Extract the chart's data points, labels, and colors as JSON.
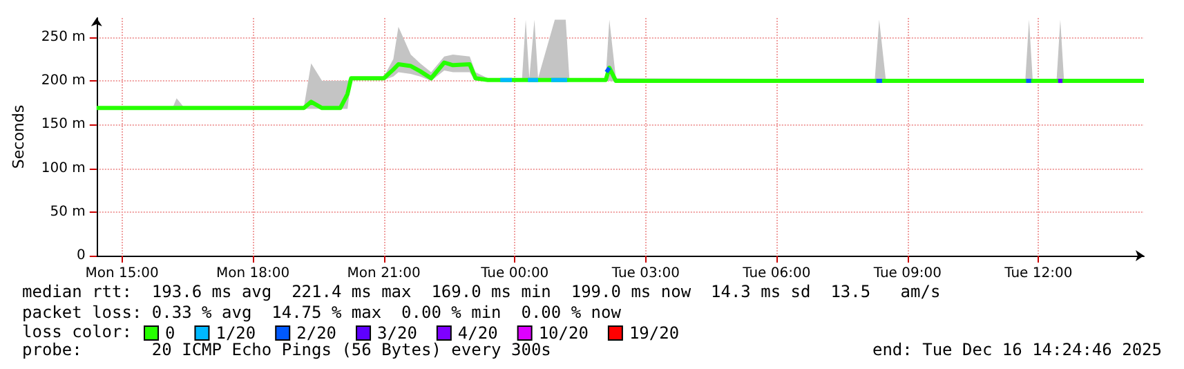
{
  "chart_data": {
    "type": "line",
    "ylabel": "Seconds",
    "legend_title": "loss color:",
    "legend": "bottom",
    "grid": true,
    "marker": "none",
    "line_style": "solid",
    "xlim": [
      "2025-12-15T14:25",
      "2025-12-16T14:25"
    ],
    "xticks": [
      {
        "value": "2025-12-15T15:00",
        "label": "Mon 15:00"
      },
      {
        "value": "2025-12-15T18:00",
        "label": "Mon 18:00"
      },
      {
        "value": "2025-12-15T21:00",
        "label": "Mon 21:00"
      },
      {
        "value": "2025-12-16T00:00",
        "label": "Tue 00:00"
      },
      {
        "value": "2025-12-16T03:00",
        "label": "Tue 03:00"
      },
      {
        "value": "2025-12-16T06:00",
        "label": "Tue 06:00"
      },
      {
        "value": "2025-12-16T09:00",
        "label": "Tue 09:00"
      },
      {
        "value": "2025-12-16T12:00",
        "label": "Tue 12:00"
      }
    ],
    "ylim": [
      0,
      272
    ],
    "yticks": [
      0,
      {
        "value": 50,
        "label": "50 m"
      },
      {
        "value": 100,
        "label": "100 m"
      },
      {
        "value": 150,
        "label": "150 m"
      },
      {
        "value": 200,
        "label": "200 m"
      },
      {
        "value": 250,
        "label": "250 m"
      }
    ],
    "x": [
      "2025-12-15T14:25",
      "2025-12-15T16:10",
      "2025-12-15T16:15",
      "2025-12-15T16:25",
      "2025-12-15T19:10",
      "2025-12-15T19:20",
      "2025-12-15T19:35",
      "2025-12-15T20:00",
      "2025-12-15T20:10",
      "2025-12-15T20:15",
      "2025-12-15T21:00",
      "2025-12-15T21:13",
      "2025-12-15T21:20",
      "2025-12-15T21:37",
      "2025-12-15T21:50",
      "2025-12-15T22:05",
      "2025-12-15T22:23",
      "2025-12-15T22:35",
      "2025-12-15T22:58",
      "2025-12-15T23:06",
      "2025-12-15T23:23",
      "2025-12-16T00:10",
      "2025-12-16T00:15",
      "2025-12-16T00:20",
      "2025-12-16T00:27",
      "2025-12-16T00:32",
      "2025-12-16T00:55",
      "2025-12-16T01:10",
      "2025-12-16T01:15",
      "2025-12-16T02:05",
      "2025-12-16T02:10",
      "2025-12-16T02:19",
      "2025-12-16T08:15",
      "2025-12-16T08:21",
      "2025-12-16T08:30",
      "2025-12-16T11:42",
      "2025-12-16T11:47",
      "2025-12-16T11:52",
      "2025-12-16T12:25",
      "2025-12-16T12:30",
      "2025-12-16T12:35",
      "2025-12-16T14:25"
    ],
    "series": [
      {
        "name": "0",
        "color": "#26ff00",
        "values": [
          169,
          169,
          169,
          169,
          169,
          176,
          169,
          169,
          185,
          203,
          203,
          213,
          219,
          217,
          211,
          203,
          221,
          218,
          219,
          203,
          201,
          201,
          201,
          201,
          201,
          201,
          201,
          201,
          201,
          201,
          215,
          200,
          200,
          200,
          200,
          200,
          200,
          200,
          200,
          200,
          200,
          200
        ],
        "lower": [
          168,
          168,
          168,
          168,
          168,
          168,
          168,
          168,
          168,
          201,
          201,
          205,
          210,
          208,
          205,
          200,
          212,
          210,
          210,
          200,
          200,
          200,
          200,
          200,
          200,
          200,
          200,
          200,
          200,
          200,
          200,
          199,
          199,
          199,
          199,
          199,
          199,
          199,
          199,
          199,
          199,
          199
        ],
        "upper": [
          170,
          170,
          180,
          170,
          170,
          220,
          200,
          200,
          200,
          205,
          205,
          225,
          262,
          230,
          220,
          210,
          228,
          230,
          228,
          210,
          203,
          203,
          270,
          203,
          270,
          203,
          270,
          270,
          203,
          203,
          270,
          203,
          202,
          270,
          202,
          202,
          270,
          202,
          202,
          270,
          202,
          201
        ]
      },
      {
        "name": "1/20",
        "color": "#00b8ff",
        "x": [
          "2025-12-15T23:40",
          "2025-12-15T23:56",
          "2025-12-16T00:10",
          "2025-12-16T00:18",
          "2025-12-16T00:32",
          "2025-12-16T00:40",
          "2025-12-16T00:50",
          "2025-12-16T01:12"
        ],
        "values": [
          201,
          201,
          null,
          201,
          201,
          null,
          201,
          201
        ]
      },
      {
        "name": "2/20",
        "color": "#0059ff",
        "x": [
          "2025-12-16T02:06",
          "2025-12-16T02:10",
          "2025-12-16T05:00",
          "2025-12-16T08:17",
          "2025-12-16T08:25",
          "2025-12-16T10:00",
          "2025-12-16T11:43",
          "2025-12-16T11:50"
        ],
        "values": [
          210,
          215,
          null,
          200,
          200,
          null,
          200,
          200
        ]
      },
      {
        "name": "3/20",
        "color": "#5e00ff",
        "x": [
          "2025-12-16T12:27",
          "2025-12-16T12:33"
        ],
        "values": [
          200,
          200
        ]
      },
      {
        "name": "4/20",
        "color": "#7e00ff",
        "values": [
          null,
          null,
          null,
          null,
          null,
          null,
          null,
          null,
          null,
          null,
          null,
          null,
          null,
          null,
          null,
          null,
          null,
          null,
          null,
          null,
          null,
          null,
          null,
          null,
          null,
          null,
          null,
          null,
          null,
          null,
          null,
          null,
          null,
          null,
          null,
          null,
          null,
          null,
          null,
          null,
          null,
          null
        ]
      },
      {
        "name": "10/20",
        "color": "#dd00ff",
        "values": [
          null,
          null,
          null,
          null,
          null,
          null,
          null,
          null,
          null,
          null,
          null,
          null,
          null,
          null,
          null,
          null,
          null,
          null,
          null,
          null,
          null,
          null,
          null,
          null,
          null,
          null,
          null,
          null,
          null,
          null,
          null,
          null,
          null,
          null,
          null,
          null,
          null,
          null,
          null,
          null,
          null,
          null
        ]
      },
      {
        "name": "19/20",
        "color": "#ff0000",
        "values": [
          null,
          null,
          null,
          null,
          null,
          null,
          null,
          null,
          null,
          null,
          null,
          null,
          null,
          null,
          null,
          null,
          null,
          null,
          null,
          null,
          null,
          null,
          null,
          null,
          null,
          null,
          null,
          null,
          null,
          null,
          null,
          null,
          null,
          null,
          null,
          null,
          null,
          null,
          null,
          null,
          null,
          null
        ]
      }
    ],
    "annotations": [
      "median rtt:  193.6 ms avg  221.4 ms max  169.0 ms min  199.0 ms now  14.3 ms sd  13.5   am/s",
      "packet loss: 0.33 % avg  14.75 % max  0.00 % min  0.00 % now",
      "probe:       20 ICMP Echo Pings (56 Bytes) every 300s",
      "end: Tue Dec 16 14:24:46 2025"
    ]
  }
}
